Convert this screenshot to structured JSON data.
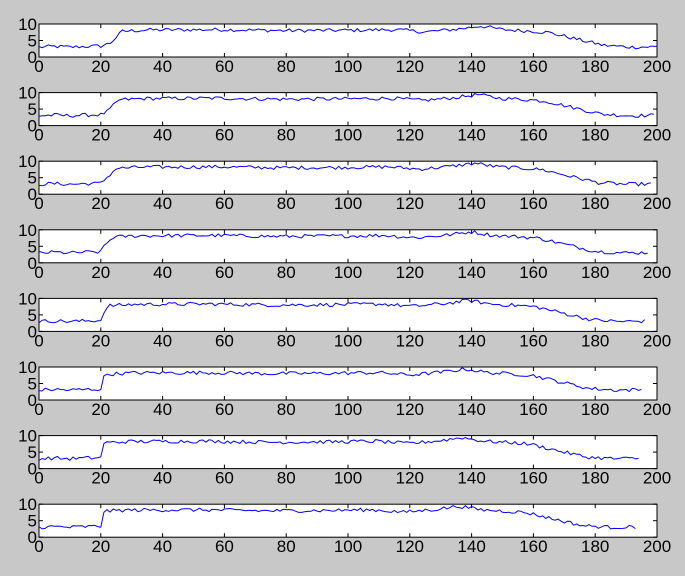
{
  "chart_data": {
    "type": "line",
    "layout": "8 stacked subplots, shared x-axis ticks",
    "series_color": "#0000ff",
    "background_color": "#c8c8c8",
    "axes_color": "#ffffff",
    "grid": false,
    "legend": "none",
    "title": "",
    "xlabel": "",
    "ylabel": "",
    "xlim": [
      0,
      200
    ],
    "ylim": [
      0,
      10
    ],
    "xticks": [
      0,
      20,
      40,
      60,
      80,
      100,
      120,
      140,
      160,
      180,
      200
    ],
    "yticks": [
      0,
      5,
      10
    ],
    "xtick_labels": [
      "0",
      "20",
      "40",
      "60",
      "80",
      "100",
      "120",
      "140",
      "160",
      "180",
      "200"
    ],
    "ytick_labels": [
      "0",
      "5",
      "10"
    ],
    "subplots": [
      {
        "shift": 0,
        "end_x": 200,
        "anchors": [
          [
            0,
            3
          ],
          [
            5,
            3.2
          ],
          [
            10,
            3
          ],
          [
            15,
            3.2
          ],
          [
            20,
            3.3
          ],
          [
            23,
            4.2
          ],
          [
            27,
            7.8
          ],
          [
            35,
            8.2
          ],
          [
            60,
            8.3
          ],
          [
            80,
            8.0
          ],
          [
            100,
            8.1
          ],
          [
            115,
            8.3
          ],
          [
            125,
            7.6
          ],
          [
            135,
            8.4
          ],
          [
            143,
            9.4
          ],
          [
            150,
            8.3
          ],
          [
            160,
            7.8
          ],
          [
            165,
            7.4
          ],
          [
            175,
            5.2
          ],
          [
            183,
            3.5
          ],
          [
            192,
            3.0
          ],
          [
            200,
            3.1
          ]
        ]
      },
      {
        "shift": -1,
        "end_x": 199,
        "anchors": [
          [
            0,
            3
          ],
          [
            5,
            3.2
          ],
          [
            10,
            3
          ],
          [
            15,
            3.2
          ],
          [
            20,
            3.3
          ],
          [
            23,
            4.2
          ],
          [
            27,
            7.8
          ],
          [
            35,
            8.2
          ],
          [
            60,
            8.3
          ],
          [
            80,
            8.0
          ],
          [
            100,
            8.1
          ],
          [
            115,
            8.3
          ],
          [
            125,
            7.6
          ],
          [
            135,
            8.4
          ],
          [
            143,
            9.4
          ],
          [
            150,
            8.3
          ],
          [
            160,
            7.8
          ],
          [
            165,
            7.4
          ],
          [
            175,
            5.2
          ],
          [
            183,
            3.5
          ],
          [
            192,
            3.0
          ],
          [
            200,
            3.1
          ]
        ]
      },
      {
        "shift": -2,
        "end_x": 198,
        "anchors": [
          [
            0,
            3
          ],
          [
            5,
            3.2
          ],
          [
            10,
            3
          ],
          [
            15,
            3.2
          ],
          [
            20,
            3.3
          ],
          [
            23,
            4.2
          ],
          [
            27,
            7.8
          ],
          [
            35,
            8.2
          ],
          [
            60,
            8.3
          ],
          [
            80,
            8.0
          ],
          [
            100,
            8.1
          ],
          [
            115,
            8.3
          ],
          [
            125,
            7.6
          ],
          [
            135,
            8.4
          ],
          [
            143,
            9.4
          ],
          [
            150,
            8.3
          ],
          [
            160,
            7.8
          ],
          [
            165,
            7.4
          ],
          [
            175,
            5.2
          ],
          [
            183,
            3.5
          ],
          [
            192,
            3.0
          ],
          [
            200,
            3.1
          ]
        ]
      },
      {
        "shift": -3,
        "end_x": 197,
        "anchors": [
          [
            0,
            3
          ],
          [
            5,
            3.2
          ],
          [
            10,
            3
          ],
          [
            15,
            3.2
          ],
          [
            20,
            3.3
          ],
          [
            23,
            4.2
          ],
          [
            27,
            7.8
          ],
          [
            35,
            8.2
          ],
          [
            60,
            8.3
          ],
          [
            80,
            8.0
          ],
          [
            100,
            8.1
          ],
          [
            115,
            8.3
          ],
          [
            125,
            7.6
          ],
          [
            135,
            8.4
          ],
          [
            143,
            9.4
          ],
          [
            150,
            8.3
          ],
          [
            160,
            7.8
          ],
          [
            165,
            7.4
          ],
          [
            175,
            5.2
          ],
          [
            183,
            3.5
          ],
          [
            192,
            3.0
          ],
          [
            200,
            3.1
          ]
        ]
      },
      {
        "shift": -4,
        "end_x": 196,
        "anchors": [
          [
            0,
            3
          ],
          [
            5,
            3.2
          ],
          [
            10,
            3
          ],
          [
            15,
            3.2
          ],
          [
            20,
            3.3
          ],
          [
            23,
            4.2
          ],
          [
            27,
            7.8
          ],
          [
            35,
            8.2
          ],
          [
            60,
            8.3
          ],
          [
            80,
            8.0
          ],
          [
            100,
            8.1
          ],
          [
            115,
            8.3
          ],
          [
            125,
            7.6
          ],
          [
            135,
            8.4
          ],
          [
            143,
            9.4
          ],
          [
            150,
            8.3
          ],
          [
            160,
            7.8
          ],
          [
            165,
            7.4
          ],
          [
            175,
            5.2
          ],
          [
            183,
            3.5
          ],
          [
            192,
            3.0
          ],
          [
            200,
            3.1
          ]
        ]
      },
      {
        "shift": -5,
        "end_x": 195,
        "anchors": [
          [
            0,
            3
          ],
          [
            5,
            3.2
          ],
          [
            10,
            3
          ],
          [
            15,
            3.2
          ],
          [
            20,
            3.3
          ],
          [
            23,
            4.2
          ],
          [
            27,
            7.8
          ],
          [
            35,
            8.2
          ],
          [
            60,
            8.3
          ],
          [
            80,
            8.0
          ],
          [
            100,
            8.1
          ],
          [
            115,
            8.3
          ],
          [
            125,
            7.6
          ],
          [
            135,
            8.4
          ],
          [
            143,
            9.4
          ],
          [
            150,
            8.3
          ],
          [
            160,
            7.8
          ],
          [
            165,
            7.4
          ],
          [
            175,
            5.2
          ],
          [
            183,
            3.5
          ],
          [
            192,
            3.0
          ],
          [
            200,
            3.1
          ]
        ]
      },
      {
        "shift": -6,
        "end_x": 194,
        "anchors": [
          [
            0,
            3
          ],
          [
            5,
            3.2
          ],
          [
            10,
            3
          ],
          [
            15,
            3.2
          ],
          [
            20,
            3.3
          ],
          [
            23,
            4.2
          ],
          [
            27,
            7.8
          ],
          [
            35,
            8.2
          ],
          [
            60,
            8.3
          ],
          [
            80,
            8.0
          ],
          [
            100,
            8.1
          ],
          [
            115,
            8.3
          ],
          [
            125,
            7.6
          ],
          [
            135,
            8.4
          ],
          [
            143,
            9.4
          ],
          [
            150,
            8.3
          ],
          [
            160,
            7.8
          ],
          [
            165,
            7.4
          ],
          [
            175,
            5.2
          ],
          [
            183,
            3.5
          ],
          [
            192,
            3.0
          ],
          [
            200,
            3.1
          ]
        ]
      },
      {
        "shift": -7,
        "end_x": 193,
        "anchors": [
          [
            0,
            3
          ],
          [
            5,
            3.2
          ],
          [
            10,
            3
          ],
          [
            15,
            3.2
          ],
          [
            20,
            3.3
          ],
          [
            23,
            4.2
          ],
          [
            27,
            7.8
          ],
          [
            35,
            8.2
          ],
          [
            60,
            8.3
          ],
          [
            80,
            8.0
          ],
          [
            100,
            8.1
          ],
          [
            115,
            8.3
          ],
          [
            125,
            7.6
          ],
          [
            135,
            8.4
          ],
          [
            143,
            9.4
          ],
          [
            150,
            8.3
          ],
          [
            160,
            7.8
          ],
          [
            165,
            7.4
          ],
          [
            175,
            5.2
          ],
          [
            183,
            3.5
          ],
          [
            192,
            3.0
          ],
          [
            200,
            3.1
          ]
        ]
      }
    ]
  }
}
